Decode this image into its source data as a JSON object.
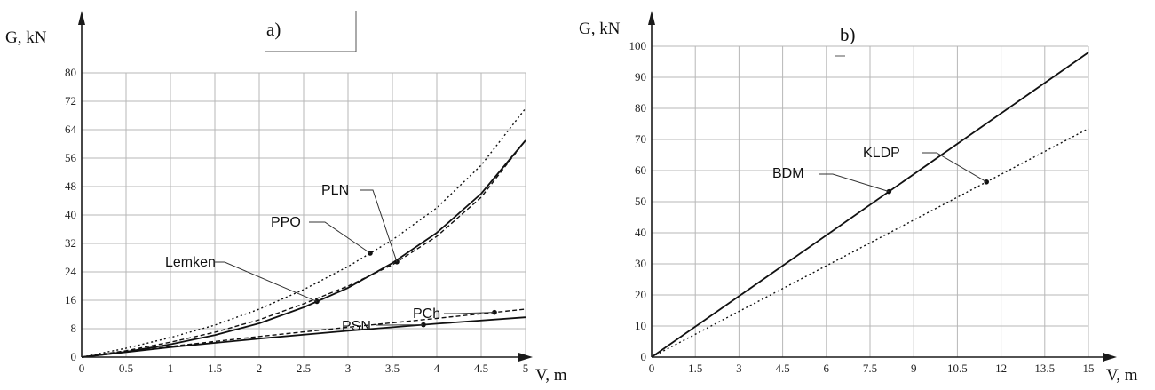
{
  "chart_data": [
    {
      "type": "line",
      "panel_label": "a)",
      "xlabel": "V, m",
      "ylabel": "G, kN",
      "xlim": [
        0,
        5
      ],
      "ylim": [
        0,
        80
      ],
      "xticks": [
        "0",
        "0.5",
        "1",
        "1.5",
        "2",
        "2.5",
        "3",
        "3.5",
        "4",
        "4.5",
        "5"
      ],
      "yticks": [
        "0",
        "8",
        "16",
        "24",
        "32",
        "40",
        "48",
        "56",
        "64",
        "72",
        "80"
      ],
      "grid": true,
      "series": [
        {
          "name": "PPO",
          "style": "dotted",
          "x": [
            0,
            0.5,
            1,
            1.5,
            2,
            2.5,
            3,
            3.5,
            4,
            4.5,
            5
          ],
          "y": [
            0,
            2.5,
            5.5,
            9,
            13.5,
            19,
            25.5,
            33,
            42,
            54,
            70
          ],
          "marker_x": 3.25
        },
        {
          "name": "PLN",
          "style": "dashed",
          "x": [
            0,
            0.5,
            1,
            1.5,
            2,
            2.5,
            3,
            3.5,
            4,
            4.5,
            5
          ],
          "y": [
            0,
            1.8,
            4.2,
            7,
            10.5,
            15,
            20,
            26,
            34,
            45,
            61
          ],
          "marker_x": 3.55
        },
        {
          "name": "Lemken",
          "style": "solid",
          "x": [
            0,
            0.5,
            1,
            1.5,
            2,
            2.5,
            3,
            3.5,
            4,
            4.5,
            5
          ],
          "y": [
            0,
            1.5,
            3.6,
            6.2,
            9.5,
            14,
            19.5,
            26.5,
            35,
            46,
            61
          ],
          "marker_x": 2.65
        },
        {
          "name": "PCh",
          "style": "dashed",
          "x": [
            0,
            1,
            2,
            3,
            4,
            5
          ],
          "y": [
            0,
            3,
            5.8,
            8.4,
            10.9,
            13.5
          ],
          "marker_x": 4.65
        },
        {
          "name": "PSN",
          "style": "solid",
          "x": [
            0,
            1,
            2,
            3,
            4,
            5
          ],
          "y": [
            0,
            2.8,
            5.2,
            7.4,
            9.4,
            11.2
          ],
          "marker_x": 3.85
        }
      ]
    },
    {
      "type": "line",
      "panel_label": "b)",
      "xlabel": "V, m",
      "ylabel": "G, kN",
      "xlim": [
        0,
        15
      ],
      "ylim": [
        0,
        100
      ],
      "xticks": [
        "0",
        "1.5",
        "3",
        "4.5",
        "6",
        "7.5",
        "9",
        "10.5",
        "12",
        "13.5",
        "15"
      ],
      "yticks": [
        "0",
        "10",
        "20",
        "30",
        "40",
        "50",
        "60",
        "70",
        "80",
        "90",
        "100"
      ],
      "grid": true,
      "series": [
        {
          "name": "BDM",
          "style": "solid",
          "x": [
            0,
            15
          ],
          "y": [
            0,
            98
          ],
          "marker_x": 8.15
        },
        {
          "name": "KLDP",
          "style": "dotted",
          "x": [
            0,
            15
          ],
          "y": [
            0,
            73.5
          ],
          "marker_x": 11.5
        }
      ]
    }
  ]
}
